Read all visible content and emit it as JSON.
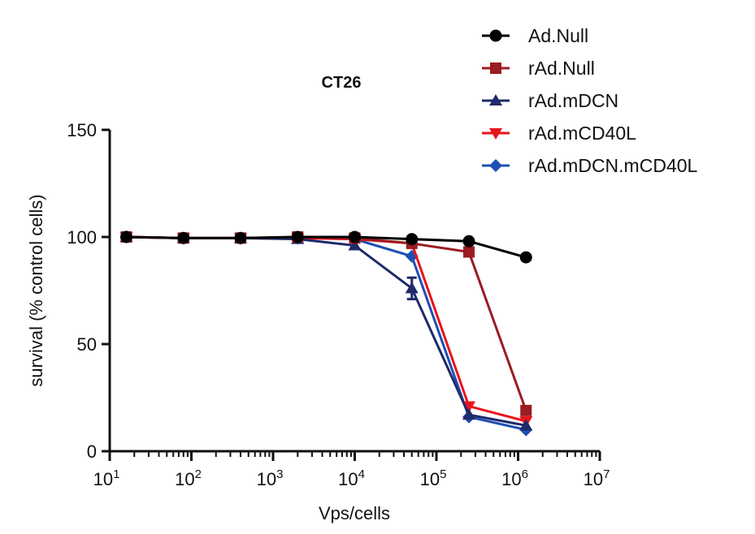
{
  "chart_data": {
    "type": "line",
    "title": "CT26",
    "xlabel": "Vps/cells",
    "ylabel": "survival (% control cells)",
    "xscale": "log",
    "xlim": [
      10,
      10000000
    ],
    "ylim": [
      0,
      150
    ],
    "yticks": [
      0,
      50,
      100,
      150
    ],
    "xtick_exponents": [
      1,
      2,
      3,
      4,
      5,
      6,
      7
    ],
    "grid": false,
    "legend_position": "top-right",
    "x": [
      16,
      80,
      400,
      2000,
      10000,
      50000,
      250000,
      1250000
    ],
    "series": [
      {
        "name": "Ad.Null",
        "marker": "circle",
        "color": "#000000",
        "values": [
          100,
          99.5,
          99.5,
          100,
          100,
          99,
          98,
          90.5
        ]
      },
      {
        "name": "rAd.Null",
        "marker": "square",
        "color": "#9b1c22",
        "values": [
          100,
          99.5,
          99.5,
          100,
          99.5,
          97,
          93,
          19
        ]
      },
      {
        "name": "rAd.mDCN",
        "marker": "triangle-up",
        "color": "#1f2a6b",
        "values": [
          100,
          99.5,
          99.5,
          99,
          96,
          76,
          17,
          12
        ],
        "errors": [
          0,
          0,
          0,
          0,
          0,
          5,
          0,
          0
        ]
      },
      {
        "name": "rAd.mCD40L",
        "marker": "triangle-down",
        "color": "#e8141b",
        "values": [
          100,
          99.5,
          99.5,
          99.5,
          99,
          97,
          21,
          14
        ]
      },
      {
        "name": "rAd.mDCN.mCD40L",
        "marker": "diamond",
        "color": "#1f4fb4",
        "values": [
          100,
          99.5,
          99.5,
          99.5,
          99,
          91,
          16,
          10
        ]
      }
    ]
  }
}
